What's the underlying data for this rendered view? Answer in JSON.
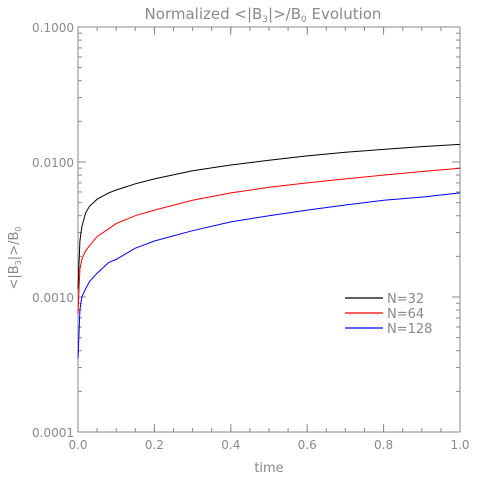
{
  "chart_data": {
    "type": "line",
    "title": "Normalized <|B",
    "title_sub": "3",
    "title_mid": "|>/B",
    "title_sub2": "0",
    "title_tail": " Evolution",
    "xlabel": "time",
    "ylabel_parts": {
      "a": "<|B",
      "sub1": "3",
      "b": "|>/B",
      "sub2": "0"
    },
    "x_ticks": [
      "0.0",
      "0.2",
      "0.4",
      "0.6",
      "0.8",
      "1.0"
    ],
    "x_tick_values": [
      0,
      0.2,
      0.4,
      0.6,
      0.8,
      1.0
    ],
    "y_ticks": [
      "0.0001",
      "0.0010",
      "0.0100",
      "0.1000"
    ],
    "y_tick_values": [
      0.0001,
      0.001,
      0.01,
      0.1
    ],
    "xlim": [
      0,
      1
    ],
    "ylim": [
      0.0001,
      0.1
    ],
    "y_scale": "log",
    "legend_position": "right",
    "x": [
      0.0,
      0.005,
      0.01,
      0.02,
      0.03,
      0.05,
      0.08,
      0.1,
      0.15,
      0.2,
      0.3,
      0.4,
      0.5,
      0.6,
      0.7,
      0.8,
      0.9,
      1.0
    ],
    "series": [
      {
        "name": "N=32",
        "color": "#000000",
        "values": [
          0.00115,
          0.0026,
          0.0033,
          0.0042,
          0.0047,
          0.0053,
          0.0059,
          0.0062,
          0.0069,
          0.0075,
          0.0086,
          0.0095,
          0.0103,
          0.0111,
          0.0118,
          0.0124,
          0.013,
          0.0135
        ]
      },
      {
        "name": "N=64",
        "color": "#ff0000",
        "values": [
          0.00075,
          0.0016,
          0.0019,
          0.0022,
          0.0024,
          0.0028,
          0.0032,
          0.0035,
          0.004,
          0.0044,
          0.0052,
          0.0059,
          0.0065,
          0.007,
          0.0075,
          0.008,
          0.0085,
          0.009
        ]
      },
      {
        "name": "N=128",
        "color": "#0000ff",
        "values": [
          0.00035,
          0.0008,
          0.001,
          0.00115,
          0.0013,
          0.0015,
          0.0018,
          0.0019,
          0.0023,
          0.0026,
          0.0031,
          0.0036,
          0.004,
          0.0044,
          0.0048,
          0.0052,
          0.0055,
          0.0059
        ]
      }
    ]
  }
}
